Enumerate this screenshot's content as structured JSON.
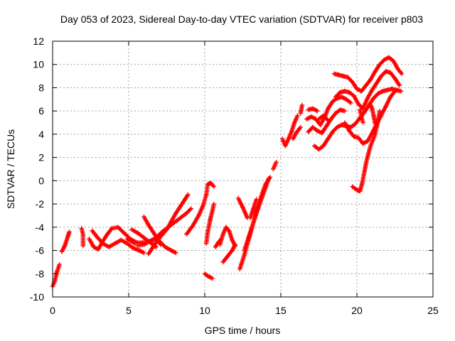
{
  "chart_data": {
    "type": "scatter",
    "title": "Day 053 of 2023, Sidereal Day-to-day VTEC variation (SDTVAR) for receiver p803",
    "xlabel": "GPS time / hours",
    "ylabel": "SDTVAR / TECUs",
    "xlim": [
      0,
      25
    ],
    "ylim": [
      -10,
      12
    ],
    "x_ticks": [
      "0",
      "5",
      "10",
      "15",
      "20",
      "25"
    ],
    "y_ticks": [
      "-10",
      "-8",
      "-6",
      "-4",
      "-2",
      "0",
      "2",
      "4",
      "6",
      "8",
      "10",
      "12"
    ],
    "grid": true,
    "marker": "+",
    "color": "#ff0000",
    "series": [
      {
        "segments": [
          [
            [
              0.0,
              -9.1
            ],
            [
              0.15,
              -8.6
            ],
            [
              0.3,
              -7.8
            ],
            [
              0.45,
              -7.2
            ]
          ],
          [
            [
              0.6,
              -6.1
            ],
            [
              0.8,
              -5.6
            ],
            [
              1.0,
              -4.8
            ],
            [
              1.1,
              -4.4
            ]
          ],
          [
            [
              1.9,
              -4.1
            ],
            [
              2.0,
              -4.6
            ],
            [
              2.0,
              -5.6
            ]
          ],
          [
            [
              2.4,
              -5.0
            ],
            [
              2.7,
              -5.7
            ],
            [
              3.0,
              -5.9
            ],
            [
              3.3,
              -5.2
            ],
            [
              3.6,
              -4.6
            ],
            [
              3.9,
              -4.1
            ],
            [
              4.3,
              -4.0
            ],
            [
              4.7,
              -4.5
            ],
            [
              5.1,
              -5.0
            ],
            [
              5.5,
              -5.3
            ],
            [
              5.9,
              -5.4
            ]
          ],
          [
            [
              2.6,
              -4.3
            ],
            [
              2.9,
              -4.8
            ],
            [
              3.3,
              -5.4
            ],
            [
              3.7,
              -5.7
            ],
            [
              4.1,
              -5.4
            ],
            [
              4.5,
              -5.1
            ],
            [
              4.9,
              -5.4
            ],
            [
              5.3,
              -5.8
            ],
            [
              5.7,
              -6.0
            ],
            [
              6.0,
              -6.2
            ]
          ],
          [
            [
              4.9,
              -5.0
            ],
            [
              5.4,
              -5.4
            ],
            [
              5.9,
              -5.3
            ],
            [
              6.4,
              -5.2
            ],
            [
              6.8,
              -5.0
            ],
            [
              7.1,
              -5.3
            ],
            [
              7.4,
              -5.7
            ],
            [
              7.8,
              -6.0
            ],
            [
              8.1,
              -6.2
            ]
          ],
          [
            [
              5.6,
              -5.6
            ],
            [
              6.0,
              -5.5
            ],
            [
              6.4,
              -5.2
            ],
            [
              6.8,
              -4.9
            ],
            [
              7.2,
              -4.4
            ],
            [
              7.6,
              -4.0
            ],
            [
              8.0,
              -3.6
            ],
            [
              8.4,
              -3.2
            ],
            [
              8.8,
              -2.8
            ],
            [
              9.1,
              -2.4
            ]
          ],
          [
            [
              5.2,
              -4.2
            ],
            [
              5.6,
              -4.5
            ],
            [
              6.0,
              -4.9
            ],
            [
              6.3,
              -5.2
            ],
            [
              6.6,
              -5.5
            ],
            [
              6.8,
              -5.7
            ]
          ],
          [
            [
              6.3,
              -6.3
            ],
            [
              6.7,
              -5.5
            ],
            [
              7.1,
              -4.8
            ],
            [
              7.5,
              -4.2
            ],
            [
              7.8,
              -3.5
            ],
            [
              8.1,
              -2.8
            ],
            [
              8.4,
              -2.2
            ],
            [
              8.7,
              -1.6
            ],
            [
              8.9,
              -1.2
            ]
          ],
          [
            [
              6.0,
              -3.1
            ],
            [
              6.3,
              -3.8
            ],
            [
              6.6,
              -4.4
            ],
            [
              6.9,
              -5.0
            ],
            [
              7.1,
              -5.5
            ]
          ],
          [
            [
              8.8,
              -4.6
            ],
            [
              9.2,
              -3.9
            ],
            [
              9.6,
              -3.0
            ],
            [
              9.9,
              -2.1
            ],
            [
              10.1,
              -1.2
            ],
            [
              10.2,
              -0.3
            ],
            [
              10.4,
              -0.2
            ],
            [
              10.6,
              -0.5
            ]
          ],
          [
            [
              10.1,
              -5.4
            ],
            [
              10.2,
              -4.4
            ],
            [
              10.35,
              -3.4
            ],
            [
              10.5,
              -2.6
            ],
            [
              10.6,
              -2.0
            ]
          ],
          [
            [
              10.0,
              -8.0
            ],
            [
              10.2,
              -8.2
            ],
            [
              10.5,
              -8.4
            ]
          ],
          [
            [
              11.0,
              -5.5
            ],
            [
              11.2,
              -4.6
            ],
            [
              11.4,
              -4.0
            ],
            [
              11.6,
              -4.3
            ],
            [
              11.8,
              -5.1
            ],
            [
              12.0,
              -5.6
            ]
          ],
          [
            [
              11.2,
              -7.0
            ],
            [
              11.5,
              -6.5
            ],
            [
              11.8,
              -6.0
            ],
            [
              12.0,
              -5.5
            ]
          ],
          [
            [
              10.7,
              -5.7
            ],
            [
              10.9,
              -5.3
            ],
            [
              11.1,
              -5.0
            ]
          ],
          [
            [
              12.3,
              -7.6
            ],
            [
              12.6,
              -6.4
            ],
            [
              12.9,
              -5.0
            ],
            [
              13.2,
              -3.6
            ],
            [
              13.5,
              -2.4
            ],
            [
              13.8,
              -1.3
            ],
            [
              14.0,
              -0.6
            ],
            [
              14.2,
              0.2
            ]
          ],
          [
            [
              12.6,
              -6.0
            ],
            [
              12.9,
              -4.8
            ],
            [
              13.2,
              -3.6
            ],
            [
              13.5,
              -2.2
            ],
            [
              13.8,
              -1.0
            ],
            [
              14.0,
              -0.3
            ],
            [
              14.3,
              0.3
            ]
          ],
          [
            [
              13.0,
              -3.2
            ],
            [
              13.2,
              -2.4
            ],
            [
              13.4,
              -1.6
            ]
          ],
          [
            [
              12.2,
              -1.5
            ],
            [
              12.5,
              -2.3
            ],
            [
              12.8,
              -3.2
            ]
          ],
          [
            [
              14.5,
              1.0
            ],
            [
              14.7,
              1.6
            ]
          ],
          [
            [
              15.1,
              3.6
            ],
            [
              15.3,
              3.0
            ],
            [
              15.5,
              3.6
            ],
            [
              15.7,
              4.2
            ],
            [
              15.9,
              5.0
            ],
            [
              16.1,
              5.6
            ]
          ],
          [
            [
              15.8,
              3.6
            ],
            [
              16.0,
              4.1
            ],
            [
              16.3,
              4.6
            ]
          ],
          [
            [
              16.3,
              5.8
            ],
            [
              16.4,
              6.5
            ]
          ],
          [
            [
              16.7,
              5.3
            ],
            [
              17.0,
              5.5
            ],
            [
              17.3,
              5.3
            ],
            [
              17.6,
              4.8
            ],
            [
              17.9,
              5.5
            ],
            [
              18.1,
              6.2
            ],
            [
              18.4,
              6.8
            ],
            [
              18.7,
              7.1
            ],
            [
              19.0,
              7.2
            ],
            [
              19.3,
              7.0
            ],
            [
              19.6,
              6.7
            ]
          ],
          [
            [
              16.8,
              4.2
            ],
            [
              17.1,
              4.6
            ],
            [
              17.4,
              4.3
            ],
            [
              17.7,
              4.1
            ],
            [
              18.0,
              4.7
            ],
            [
              18.3,
              5.3
            ],
            [
              18.6,
              5.8
            ],
            [
              18.9,
              6.1
            ],
            [
              19.2,
              6.0
            ]
          ],
          [
            [
              17.2,
              3.0
            ],
            [
              17.5,
              2.7
            ],
            [
              17.8,
              3.0
            ],
            [
              18.1,
              3.6
            ],
            [
              18.4,
              4.2
            ],
            [
              18.7,
              4.6
            ],
            [
              19.0,
              4.8
            ],
            [
              19.3,
              4.7
            ],
            [
              19.6,
              4.6
            ],
            [
              19.9,
              4.9
            ],
            [
              20.2,
              5.4
            ],
            [
              20.5,
              5.9
            ],
            [
              20.8,
              6.5
            ],
            [
              21.1,
              7.1
            ],
            [
              21.4,
              7.5
            ],
            [
              21.7,
              7.7
            ],
            [
              22.0,
              7.8
            ],
            [
              22.3,
              7.9
            ],
            [
              22.6,
              7.8
            ],
            [
              22.9,
              7.7
            ]
          ],
          [
            [
              18.5,
              9.2
            ],
            [
              18.8,
              9.1
            ],
            [
              19.1,
              9.0
            ],
            [
              19.4,
              8.9
            ],
            [
              19.7,
              8.5
            ],
            [
              20.0,
              7.9
            ],
            [
              20.3,
              7.7
            ],
            [
              20.6,
              8.2
            ],
            [
              20.9,
              8.7
            ],
            [
              21.2,
              9.4
            ],
            [
              21.5,
              10.0
            ],
            [
              21.8,
              10.4
            ],
            [
              22.1,
              10.6
            ],
            [
              22.4,
              10.3
            ],
            [
              22.7,
              9.6
            ],
            [
              22.95,
              9.2
            ]
          ],
          [
            [
              18.6,
              7.2
            ],
            [
              18.9,
              7.6
            ],
            [
              19.2,
              7.7
            ],
            [
              19.5,
              7.6
            ],
            [
              19.8,
              7.3
            ],
            [
              20.1,
              6.6
            ],
            [
              20.4,
              6.2
            ],
            [
              20.7,
              7.1
            ],
            [
              21.0,
              7.8
            ],
            [
              21.3,
              8.4
            ],
            [
              21.6,
              9.0
            ],
            [
              21.9,
              9.4
            ],
            [
              22.2,
              9.3
            ],
            [
              22.5,
              8.8
            ],
            [
              22.8,
              8.2
            ]
          ],
          [
            [
              19.2,
              5.0
            ],
            [
              19.5,
              4.3
            ],
            [
              19.8,
              3.8
            ],
            [
              20.1,
              3.7
            ],
            [
              20.4,
              3.2
            ],
            [
              20.7,
              3.4
            ],
            [
              21.0,
              4.1
            ],
            [
              21.3,
              4.9
            ],
            [
              21.6,
              5.6
            ],
            [
              21.9,
              6.4
            ],
            [
              22.2,
              7.2
            ],
            [
              22.5,
              7.7
            ]
          ],
          [
            [
              19.7,
              -0.5
            ],
            [
              20.0,
              -0.8
            ],
            [
              20.2,
              -0.9
            ],
            [
              20.35,
              -0.2
            ],
            [
              20.5,
              0.8
            ],
            [
              20.6,
              1.5
            ],
            [
              20.75,
              2.3
            ],
            [
              20.9,
              3.0
            ],
            [
              21.05,
              3.5
            ],
            [
              21.2,
              4.0
            ],
            [
              21.3,
              4.6
            ],
            [
              21.4,
              5.2
            ],
            [
              21.5,
              6.0
            ]
          ],
          [
            [
              20.2,
              6.1
            ],
            [
              20.3,
              5.5
            ],
            [
              20.4,
              5.0
            ]
          ],
          [
            [
              20.9,
              6.5
            ],
            [
              21.0,
              6.2
            ],
            [
              21.1,
              5.6
            ],
            [
              21.2,
              4.9
            ]
          ],
          [
            [
              16.8,
              6.1
            ],
            [
              17.1,
              6.2
            ],
            [
              17.4,
              6.0
            ]
          ],
          [
            [
              17.5,
              5.3
            ],
            [
              17.8,
              5.6
            ],
            [
              18.1,
              5.2
            ]
          ]
        ]
      }
    ]
  }
}
